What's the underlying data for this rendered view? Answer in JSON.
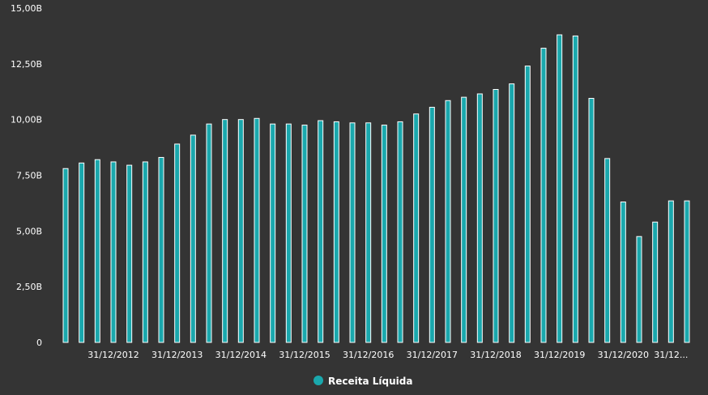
{
  "colors": {
    "background": "#343434",
    "bar_fill": "#1aa8ad",
    "bar_stroke": "#ffffff",
    "text": "#ffffff"
  },
  "chart_data": {
    "type": "bar",
    "title": "",
    "xlabel": "",
    "ylabel": "",
    "ylim": [
      0,
      15.0
    ],
    "y_ticks": [
      {
        "value": 0,
        "label": "0"
      },
      {
        "value": 2.5,
        "label": "2,50B"
      },
      {
        "value": 5.0,
        "label": "5,00B"
      },
      {
        "value": 7.5,
        "label": "7,50B"
      },
      {
        "value": 10.0,
        "label": "10,00B"
      },
      {
        "value": 12.5,
        "label": "12,50B"
      },
      {
        "value": 15.0,
        "label": "15,00B"
      }
    ],
    "x_tick_labels": [
      {
        "index": 3,
        "label": "31/12/2012"
      },
      {
        "index": 7,
        "label": "31/12/2013"
      },
      {
        "index": 11,
        "label": "31/12/2014"
      },
      {
        "index": 15,
        "label": "31/12/2015"
      },
      {
        "index": 19,
        "label": "31/12/2016"
      },
      {
        "index": 23,
        "label": "31/12/2017"
      },
      {
        "index": 27,
        "label": "31/12/2018"
      },
      {
        "index": 31,
        "label": "31/12/2019"
      },
      {
        "index": 35,
        "label": "31/12/2020"
      },
      {
        "index": 38,
        "label": "31/12..."
      }
    ],
    "grid": false,
    "legend_position": "bottom-center",
    "series": [
      {
        "name": "Receita Líquida",
        "values": [
          7.8,
          8.05,
          8.2,
          8.1,
          7.95,
          8.1,
          8.3,
          8.9,
          9.3,
          9.8,
          10.0,
          10.0,
          10.05,
          9.8,
          9.8,
          9.75,
          9.95,
          9.9,
          9.85,
          9.85,
          9.75,
          9.9,
          10.25,
          10.55,
          10.85,
          11.0,
          11.15,
          11.35,
          11.6,
          12.4,
          13.2,
          13.8,
          13.75,
          10.95,
          8.25,
          6.3,
          4.75,
          5.4,
          6.35,
          6.35
        ]
      }
    ]
  }
}
